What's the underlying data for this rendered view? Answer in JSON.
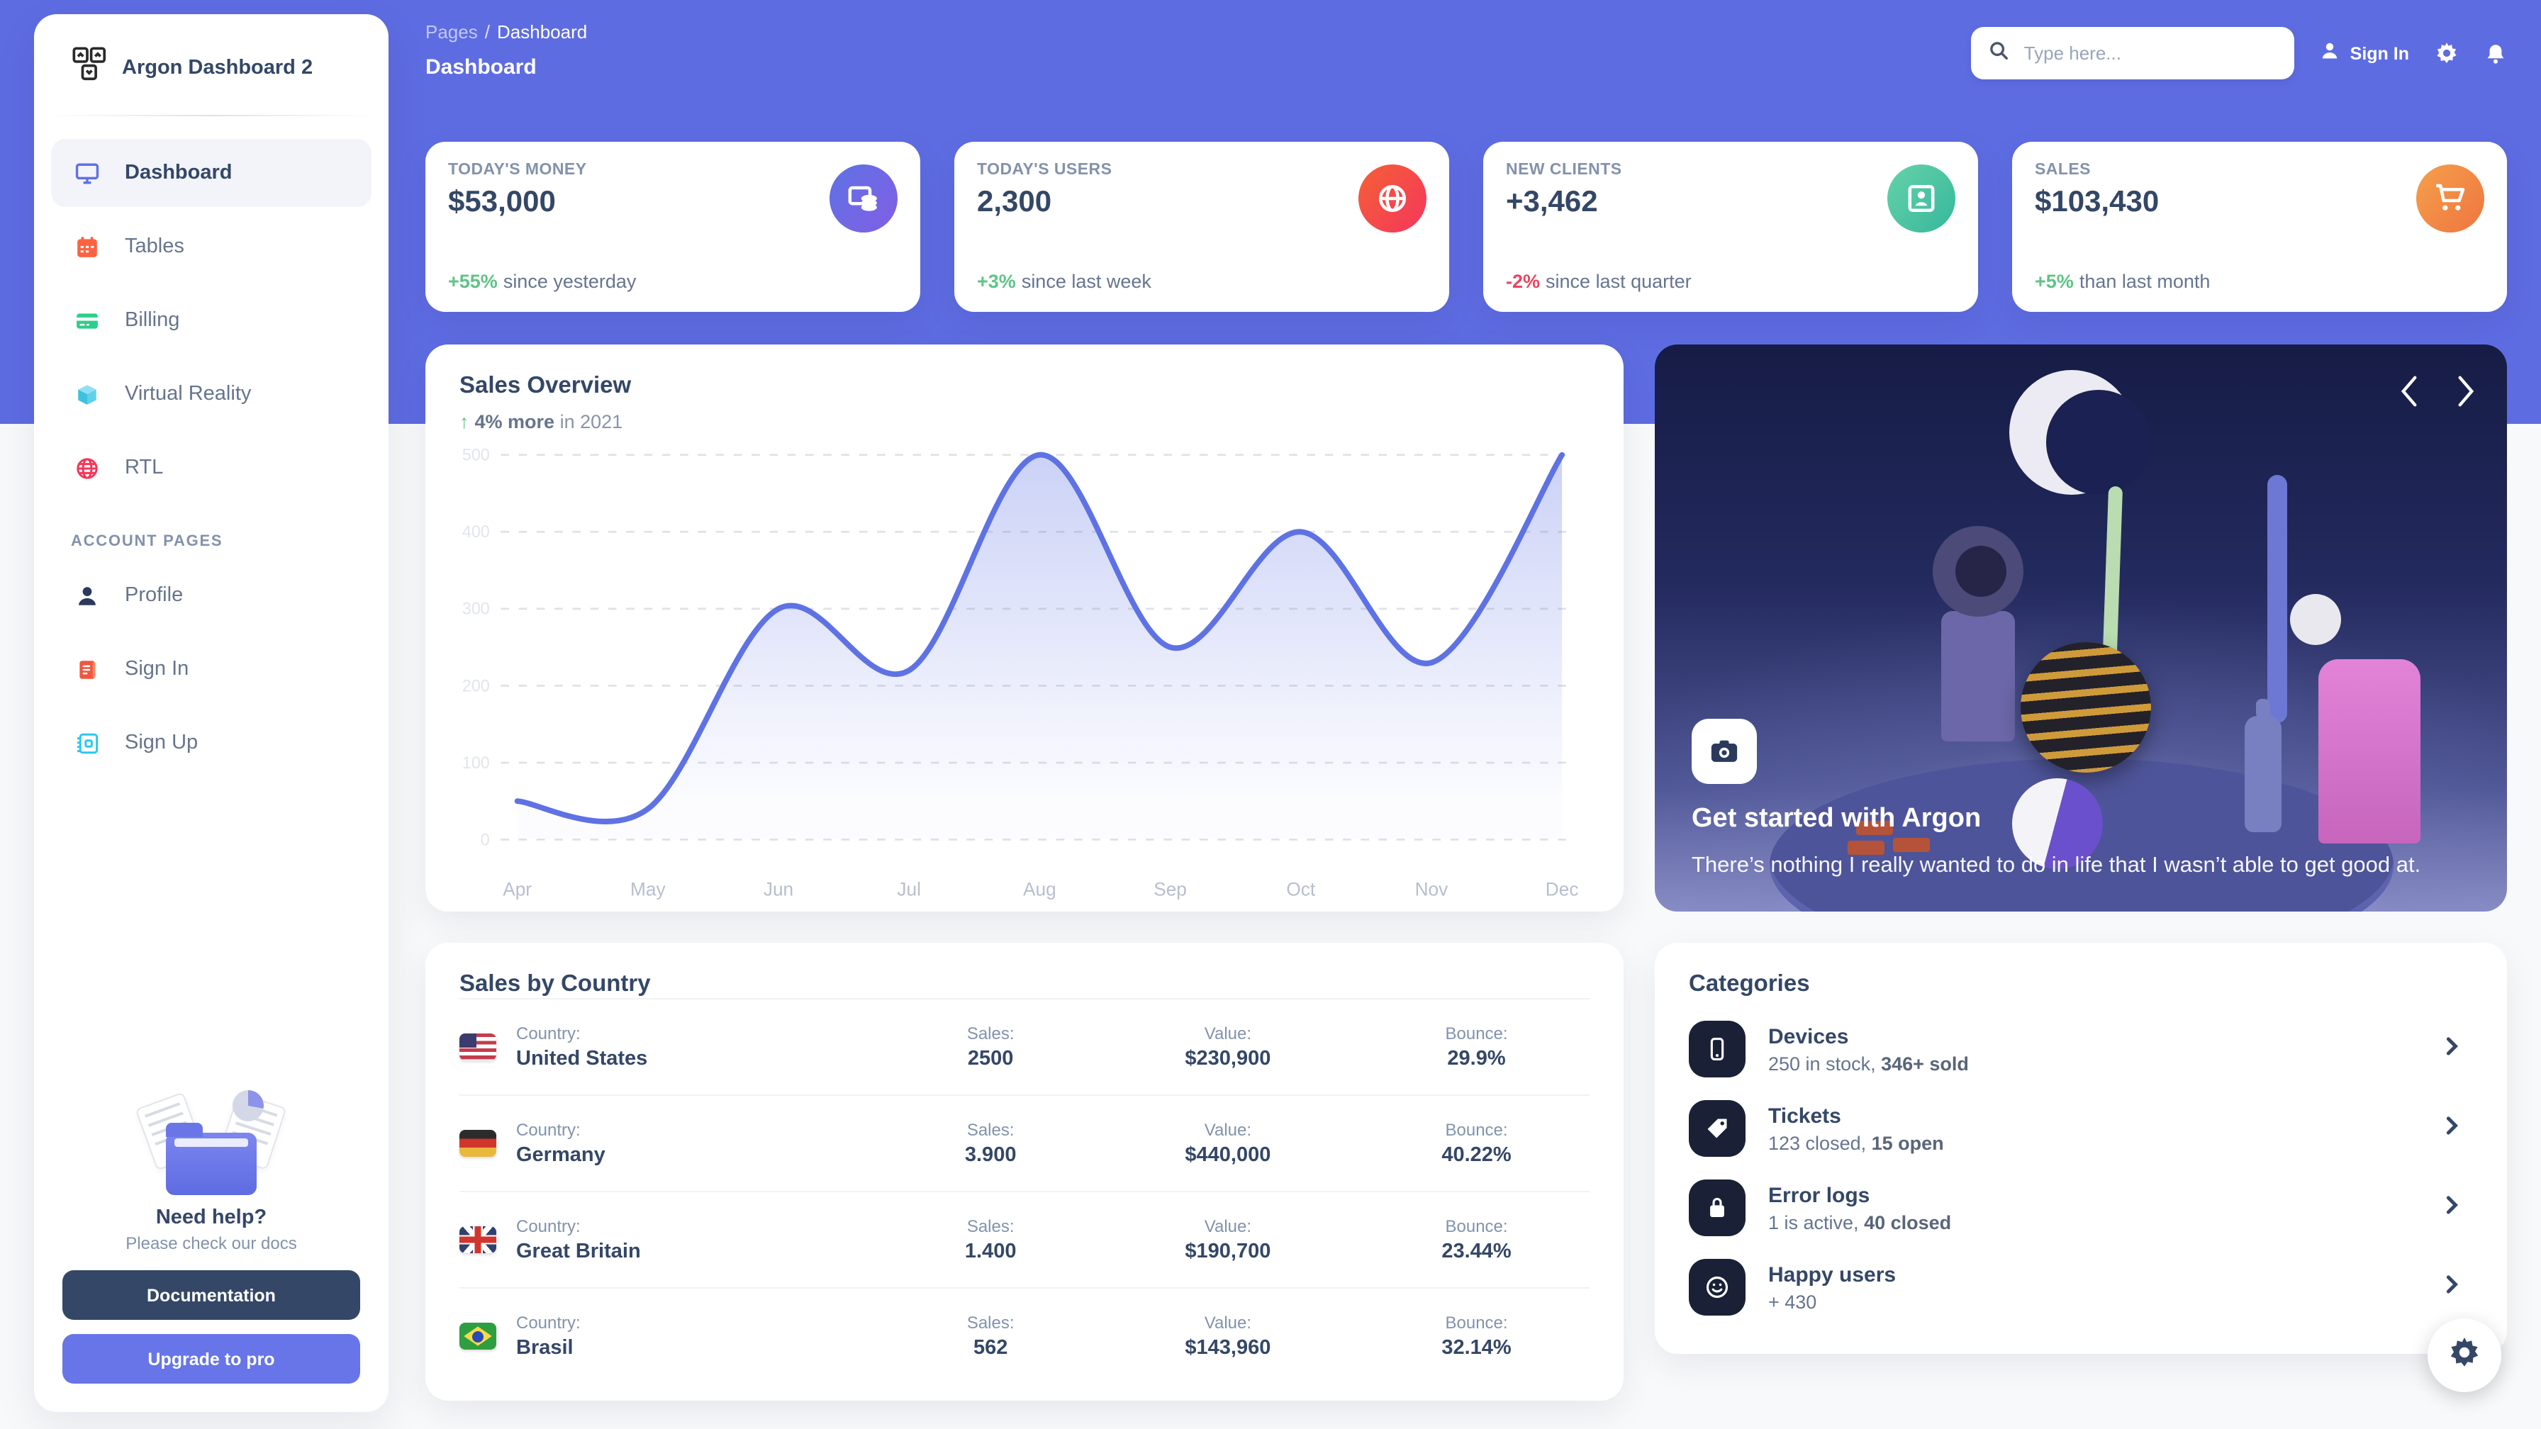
{
  "colors": {
    "primary": "#5e6ce2",
    "text_dark": "#344767",
    "text_gray": "#67748e",
    "text_light": "#8392ab",
    "success_green": "#60c487",
    "danger_red": "#ec4560",
    "card_bg": "#ffffff",
    "body_bg": "#f8f9fa"
  },
  "sidebar": {
    "brand": "Argon Dashboard 2",
    "nav": [
      {
        "label": "Dashboard",
        "icon": "monitor-icon",
        "active": true
      },
      {
        "label": "Tables",
        "icon": "calendar-icon",
        "active": false
      },
      {
        "label": "Billing",
        "icon": "credit-card-icon",
        "active": false
      },
      {
        "label": "Virtual Reality",
        "icon": "cube-icon",
        "active": false
      },
      {
        "label": "RTL",
        "icon": "globe-icon",
        "active": false
      }
    ],
    "section_label": "ACCOUNT PAGES",
    "account_nav": [
      {
        "label": "Profile",
        "icon": "person-icon"
      },
      {
        "label": "Sign In",
        "icon": "document-icon"
      },
      {
        "label": "Sign Up",
        "icon": "notebook-icon"
      }
    ],
    "help": {
      "title": "Need help?",
      "subtitle": "Please check our docs",
      "doc_button": "Documentation",
      "upgrade_button": "Upgrade to pro"
    }
  },
  "header": {
    "breadcrumb_root": "Pages",
    "breadcrumb_sep": "/",
    "breadcrumb_current": "Dashboard",
    "page_title": "Dashboard",
    "search_placeholder": "Type here...",
    "sign_in": "Sign In"
  },
  "stats": [
    {
      "label": "TODAY'S MONEY",
      "value": "$53,000",
      "delta": "+55%",
      "delta_color": "#60c487",
      "note": "since yesterday",
      "icon": "coins-icon",
      "icon_bg": "linear-gradient(310deg,#825ee4,#5e72e4)"
    },
    {
      "label": "TODAY'S USERS",
      "value": "2,300",
      "delta": "+3%",
      "delta_color": "#60c487",
      "note": "since last week",
      "icon": "globe-icon",
      "icon_bg": "linear-gradient(310deg,#f5365c,#f56036)"
    },
    {
      "label": "NEW CLIENTS",
      "value": "+3,462",
      "delta": "-2%",
      "delta_color": "#ec4560",
      "note": "since last quarter",
      "icon": "id-card-icon",
      "icon_bg": "linear-gradient(310deg,#35b89c,#66d2a8)"
    },
    {
      "label": "SALES",
      "value": "$103,430",
      "delta": "+5%",
      "delta_color": "#60c487",
      "note": "than last month",
      "icon": "cart-icon",
      "icon_bg": "linear-gradient(310deg,#ee7540,#f5a04b)"
    }
  ],
  "sales_overview": {
    "title": "Sales Overview",
    "arrow": "↑",
    "delta": "4% more",
    "period": "in 2021"
  },
  "chart_data": {
    "type": "line",
    "title": "Sales Overview",
    "categories": [
      "Apr",
      "May",
      "Jun",
      "Jul",
      "Aug",
      "Sep",
      "Oct",
      "Nov",
      "Dec"
    ],
    "series": [
      {
        "name": "Sales",
        "values": [
          50,
          40,
          300,
          220,
          500,
          250,
          400,
          230,
          500
        ]
      }
    ],
    "xlabel": "",
    "ylabel": "",
    "ylim": [
      0,
      500
    ],
    "yticks": [
      0,
      100,
      200,
      300,
      400,
      500
    ],
    "grid": "horizontal-dashed",
    "legend": "none",
    "line_color": "#5e72e4",
    "area_fill_top": "rgba(94,114,228,0.32)",
    "area_fill_bottom": "rgba(94,114,228,0.02)"
  },
  "carousel": {
    "prev": "‹",
    "next": "›",
    "icon": "camera-icon",
    "title": "Get started with Argon",
    "description": "There’s nothing I really wanted to do in life that I wasn’t able to get good at."
  },
  "sales_by_country": {
    "title": "Sales by Country",
    "label_country": "Country:",
    "label_sales": "Sales:",
    "label_value": "Value:",
    "label_bounce": "Bounce:",
    "rows": [
      {
        "flag": "united-states",
        "country": "United States",
        "sales": "2500",
        "value": "$230,900",
        "bounce": "29.9%"
      },
      {
        "flag": "germany",
        "country": "Germany",
        "sales": "3.900",
        "value": "$440,000",
        "bounce": "40.22%"
      },
      {
        "flag": "great-britain",
        "country": "Great Britain",
        "sales": "1.400",
        "value": "$190,700",
        "bounce": "23.44%"
      },
      {
        "flag": "brasil",
        "country": "Brasil",
        "sales": "562",
        "value": "$143,960",
        "bounce": "32.14%"
      }
    ]
  },
  "categories": {
    "title": "Categories",
    "items": [
      {
        "icon": "mobile-icon",
        "label": "Devices",
        "desc_plain": "250 in stock, ",
        "desc_bold": "346+ sold"
      },
      {
        "icon": "tag-icon",
        "label": "Tickets",
        "desc_plain": "123 closed, ",
        "desc_bold": "15 open"
      },
      {
        "icon": "box-icon",
        "label": "Error logs",
        "desc_plain": "1 is active, ",
        "desc_bold": "40 closed"
      },
      {
        "icon": "smile-icon",
        "label": "Happy users",
        "desc_plain": "+ 430",
        "desc_bold": ""
      }
    ]
  }
}
